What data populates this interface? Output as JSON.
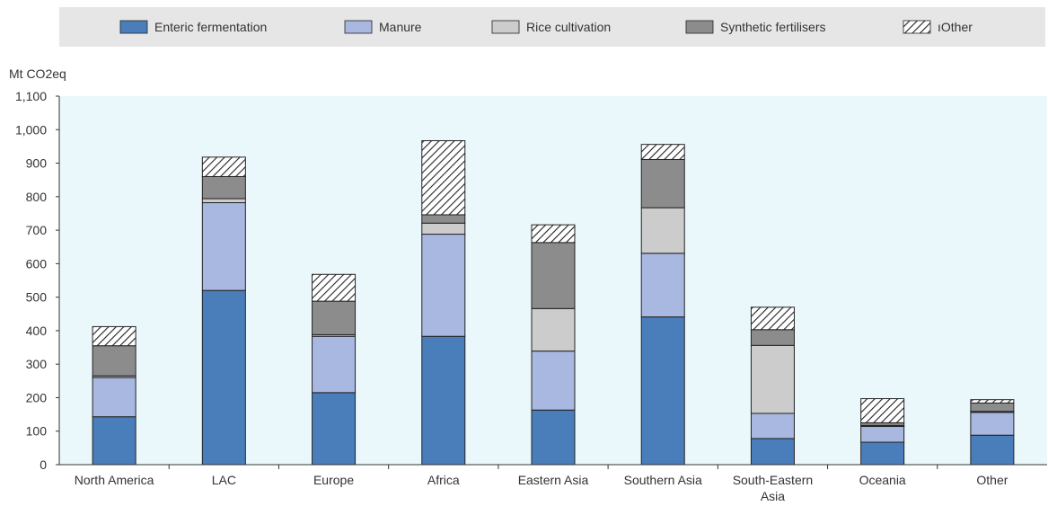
{
  "chart_data": {
    "type": "bar",
    "stacked": true,
    "ylabel": "Mt CO2eq",
    "ylim": [
      0,
      1100
    ],
    "yticks": [
      0,
      100,
      200,
      300,
      400,
      500,
      600,
      700,
      800,
      900,
      1000,
      1100
    ],
    "ytick_labels": [
      "0",
      "100",
      "200",
      "300",
      "400",
      "500",
      "600",
      "700",
      "800",
      "900",
      "1,000",
      "1,100"
    ],
    "grid": false,
    "legend_position": "top",
    "categories": [
      "North America",
      "LAC",
      "Europe",
      "Africa",
      "Eastern Asia",
      "Southern Asia",
      "South-Eastern Asia",
      "Oceania",
      "Other"
    ],
    "series": [
      {
        "name": "Enteric fermentation",
        "color": "#4a7ebb",
        "pattern": "solid",
        "values": [
          143,
          520,
          215,
          383,
          163,
          441,
          78,
          67,
          88
        ]
      },
      {
        "name": "Manure",
        "color": "#a9b8e0",
        "pattern": "solid",
        "values": [
          117,
          262,
          168,
          305,
          176,
          190,
          75,
          47,
          68
        ]
      },
      {
        "name": "Rice cultivation",
        "color": "#cccccc",
        "pattern": "solid",
        "values": [
          5,
          12,
          5,
          33,
          127,
          136,
          203,
          3,
          3
        ]
      },
      {
        "name": "Synthetic fertilisers",
        "color": "#8c8c8c",
        "pattern": "solid",
        "values": [
          90,
          66,
          100,
          25,
          197,
          144,
          47,
          8,
          25
        ]
      },
      {
        "name": "ıOther",
        "color": "#ffffff",
        "pattern": "hatch",
        "values": [
          57,
          58,
          80,
          221,
          53,
          45,
          67,
          72,
          10
        ]
      }
    ]
  }
}
